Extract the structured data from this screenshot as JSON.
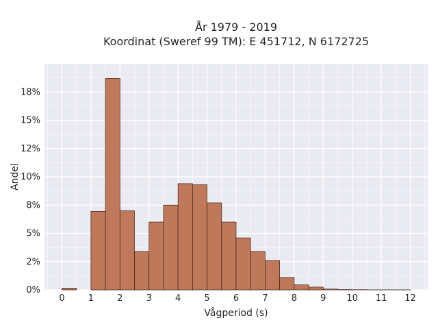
{
  "chart_data": {
    "type": "bar",
    "title": "År 1979 - 2019",
    "subtitle": "Koordinat (Sweref 99 TM): E 451712, N 6172725",
    "xlabel": "Vågperiod (s)",
    "ylabel": "Andel",
    "xlim": [
      -0.6,
      12.6
    ],
    "ylim": [
      0,
      0.2
    ],
    "x_ticks": [
      0,
      1,
      2,
      3,
      4,
      5,
      6,
      7,
      8,
      9,
      10,
      11,
      12
    ],
    "x_tick_labels": [
      "0",
      "1",
      "2",
      "3",
      "4",
      "5",
      "6",
      "7",
      "8",
      "9",
      "10",
      "11",
      "12"
    ],
    "y_ticks": [
      0,
      0.025,
      0.05,
      0.075,
      0.1,
      0.125,
      0.15,
      0.175
    ],
    "y_tick_labels": [
      "0%",
      "2%",
      "5%",
      "8%",
      "10%",
      "12%",
      "15%",
      "18%"
    ],
    "grid": true,
    "bar_color": "#c0785a",
    "edge_color": "#3a2418",
    "background_color": "#eaeaf2",
    "bins": [
      {
        "start": 0.0,
        "end": 0.5,
        "value": 0.0015
      },
      {
        "start": 1.0,
        "end": 1.5,
        "value": 0.0695
      },
      {
        "start": 1.5,
        "end": 2.0,
        "value": 0.187
      },
      {
        "start": 2.0,
        "end": 2.5,
        "value": 0.07
      },
      {
        "start": 2.5,
        "end": 3.0,
        "value": 0.034
      },
      {
        "start": 3.0,
        "end": 3.5,
        "value": 0.06
      },
      {
        "start": 3.5,
        "end": 4.0,
        "value": 0.075
      },
      {
        "start": 4.0,
        "end": 4.5,
        "value": 0.094
      },
      {
        "start": 4.5,
        "end": 5.0,
        "value": 0.093
      },
      {
        "start": 5.0,
        "end": 5.5,
        "value": 0.077
      },
      {
        "start": 5.5,
        "end": 6.0,
        "value": 0.06
      },
      {
        "start": 6.0,
        "end": 6.5,
        "value": 0.046
      },
      {
        "start": 6.5,
        "end": 7.0,
        "value": 0.034
      },
      {
        "start": 7.0,
        "end": 7.5,
        "value": 0.026
      },
      {
        "start": 7.5,
        "end": 8.0,
        "value": 0.011
      },
      {
        "start": 8.0,
        "end": 8.5,
        "value": 0.0045
      },
      {
        "start": 8.5,
        "end": 9.0,
        "value": 0.0025
      },
      {
        "start": 9.0,
        "end": 9.5,
        "value": 0.0008
      },
      {
        "start": 9.5,
        "end": 10.0,
        "value": 0.0003
      },
      {
        "start": 10.0,
        "end": 10.5,
        "value": 0.0002
      },
      {
        "start": 10.5,
        "end": 11.0,
        "value": 0.0001
      },
      {
        "start": 11.0,
        "end": 11.5,
        "value": 0.0001
      },
      {
        "start": 11.5,
        "end": 12.0,
        "value": 0.0001
      }
    ]
  }
}
